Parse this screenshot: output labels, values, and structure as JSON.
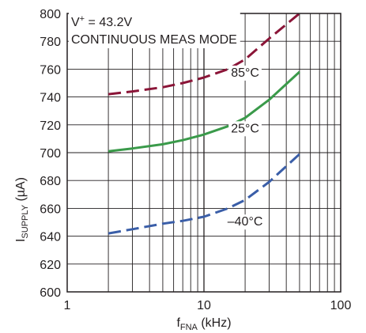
{
  "chart_data": {
    "type": "line",
    "x_scale": "log",
    "xlim": [
      1,
      100
    ],
    "ylim": [
      600,
      800
    ],
    "x_ticks": [
      "1",
      "10",
      "100"
    ],
    "y_ticks": [
      "600",
      "620",
      "640",
      "660",
      "680",
      "700",
      "720",
      "740",
      "760",
      "780",
      "800"
    ],
    "ylabel": {
      "main": "I",
      "sub": "SUPPLY",
      "unit": " (µA)"
    },
    "xlabel": {
      "main": "f",
      "sub": "FNA",
      "unit": " (kHz)"
    },
    "annotation": {
      "line1_base": "V",
      "line1_sup": "+",
      "line1_rest": " = 43.2V",
      "line2": "CONTINUOUS MEAS MODE"
    },
    "series": [
      {
        "name": "85°C",
        "color": "#8b1538",
        "dash": "long",
        "x": [
          2,
          3,
          5,
          7,
          10,
          15,
          20,
          30,
          50
        ],
        "y": [
          742,
          744,
          747,
          750,
          754,
          760,
          767,
          782,
          800
        ]
      },
      {
        "name": "25°C",
        "color": "#3a9a4a",
        "dash": "solid",
        "x": [
          2,
          3,
          5,
          7,
          10,
          15,
          20,
          30,
          50
        ],
        "y": [
          701,
          703,
          706,
          709,
          713,
          719,
          725,
          738,
          758
        ]
      },
      {
        "name": "–40°C",
        "color": "#3a5ea8",
        "dash": "long",
        "x": [
          2,
          3,
          5,
          7,
          10,
          15,
          20,
          30,
          50
        ],
        "y": [
          642,
          645,
          649,
          651,
          654,
          660,
          666,
          679,
          699
        ]
      }
    ],
    "series_label_positions": [
      {
        "x": 20,
        "y": 758
      },
      {
        "x": 20,
        "y": 718
      },
      {
        "x": 20,
        "y": 651
      }
    ]
  }
}
